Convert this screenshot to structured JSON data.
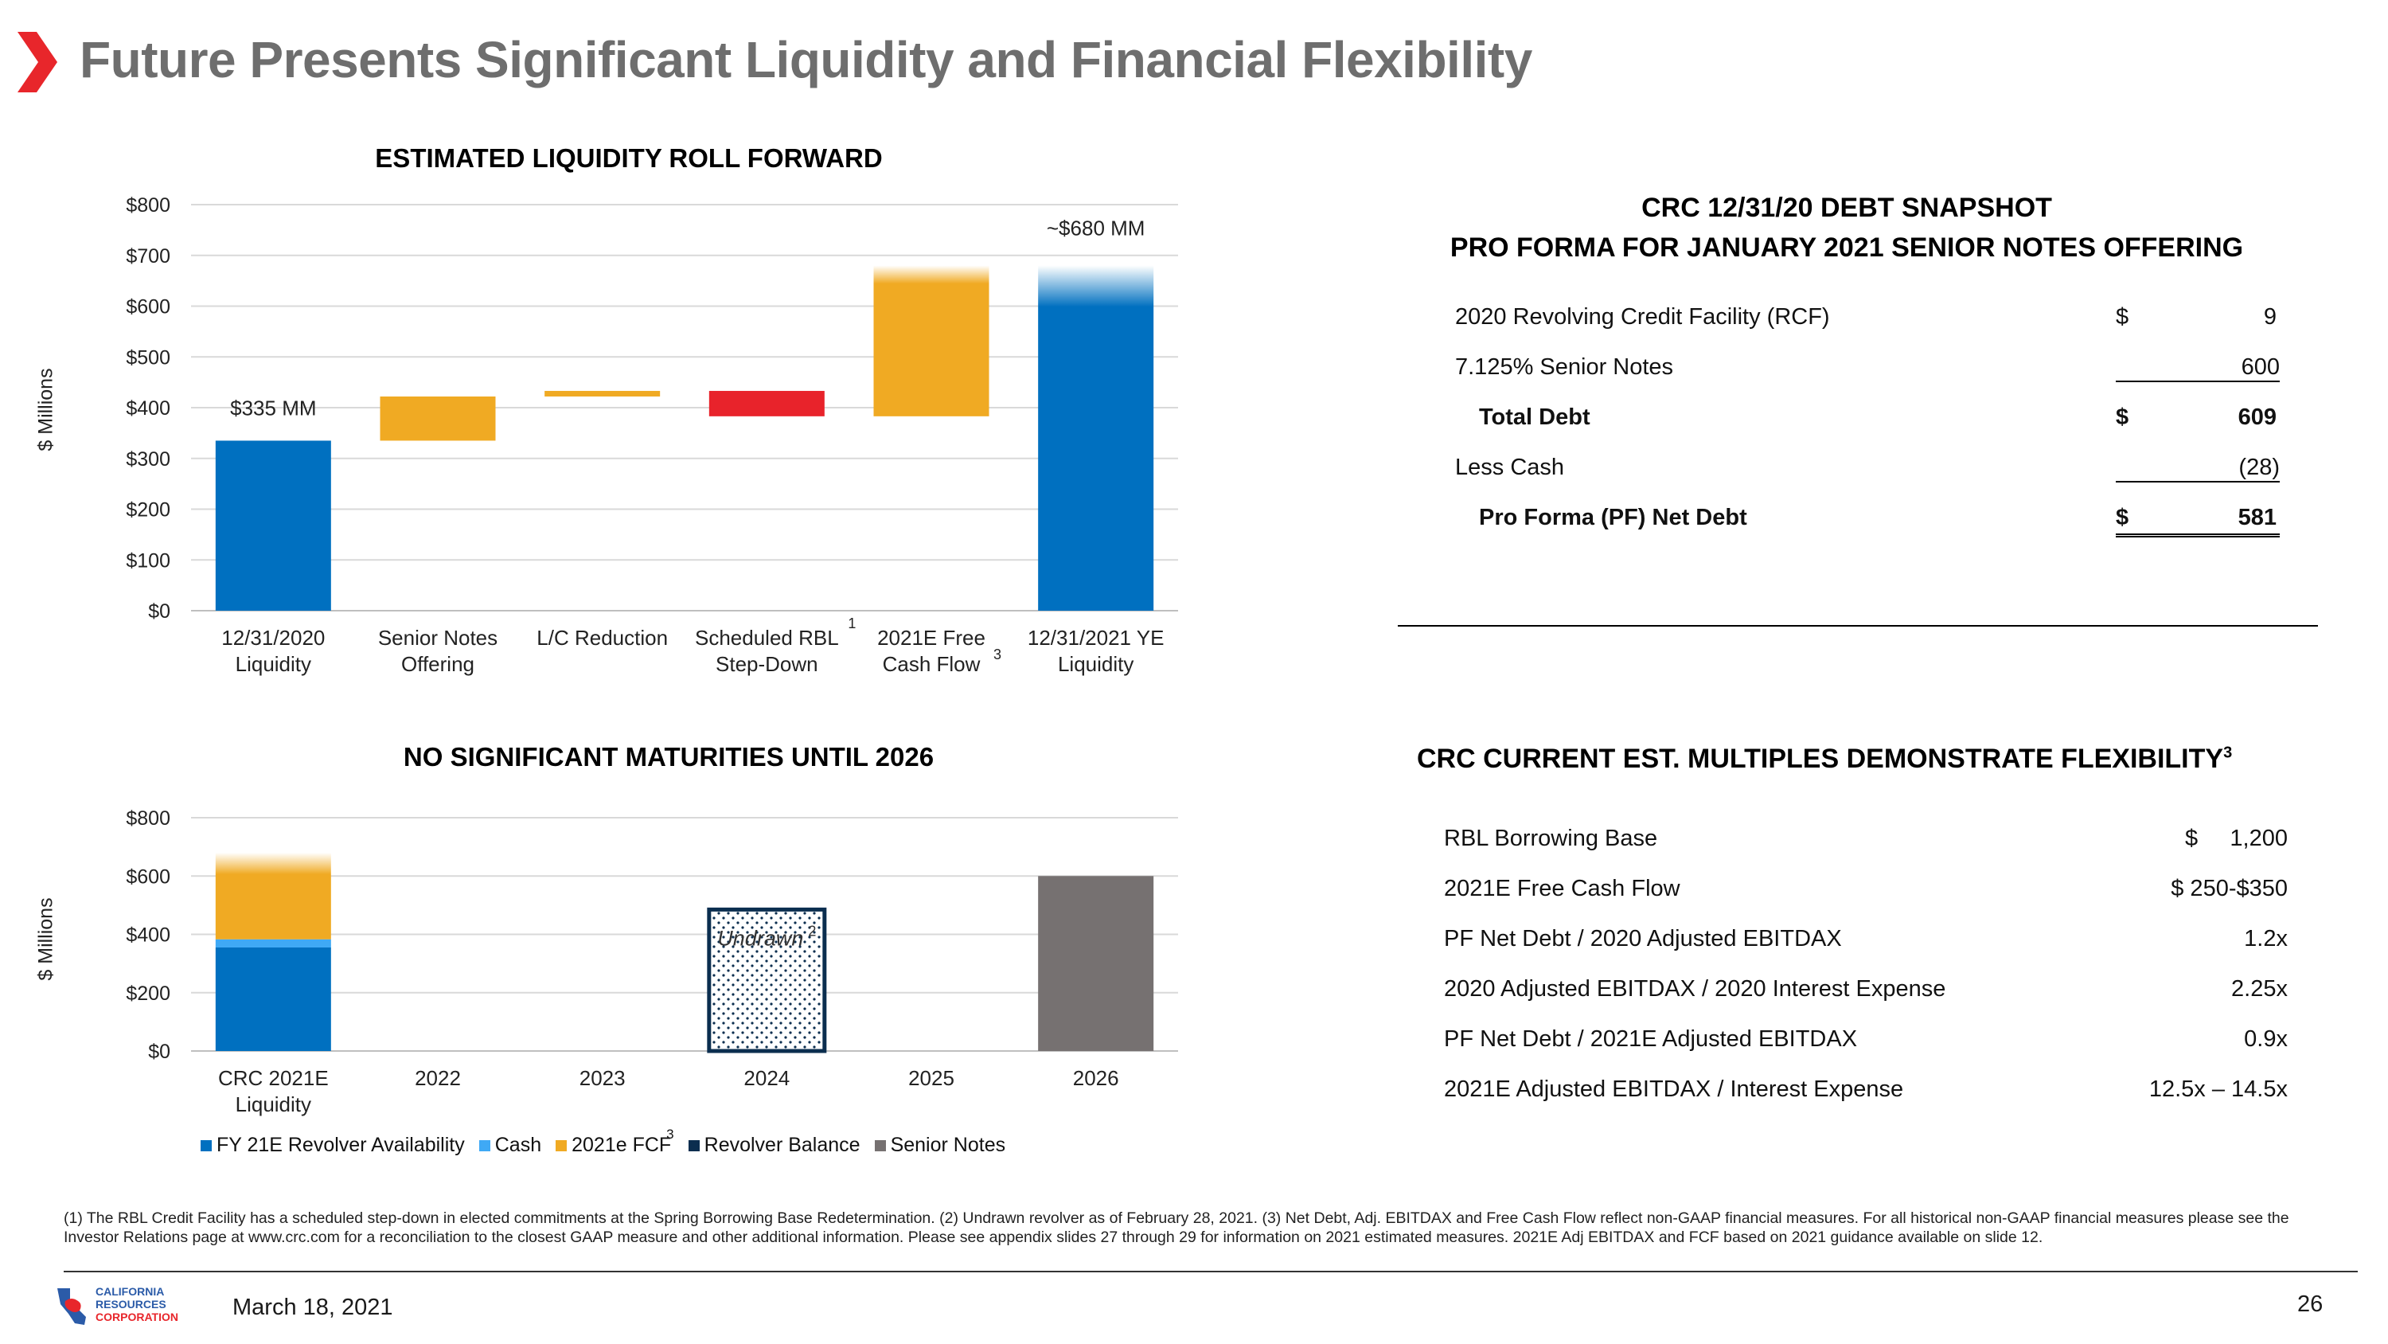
{
  "slide": {
    "title": "Future Presents Significant Liquidity and Financial Flexibility",
    "date": "March 18, 2021",
    "page_number": "26",
    "logo_lines": [
      "CALIFORNIA",
      "RESOURCES",
      "CORPORATION"
    ],
    "footnote": "(1) The RBL Credit Facility has a scheduled step-down in elected commitments at the Spring Borrowing Base Redetermination. (2) Undrawn revolver as of February 28, 2021. (3) Net Debt, Adj. EBITDAX and Free Cash Flow reflect non-GAAP financial measures. For all historical non-GAAP financial measures please see the Investor Relations page at www.crc.com for a reconciliation to the closest GAAP measure and other additional information. Please see appendix slides 27 through 29 for information on 2021 estimated measures. 2021E Adj EBITDAX and FCF based on 2021 guidance available on slide 12.",
    "colors": {
      "accent_red": "#E8262B",
      "title_gray": "#6E6E6E",
      "blue": "#0070C0",
      "gold": "#F0AA23",
      "red": "#E8232B",
      "light_blue": "#3FA9F5",
      "navy": "#0B2E4F",
      "gray": "#767171"
    }
  },
  "chart_data": [
    {
      "type": "bar",
      "subtype": "waterfall",
      "title": "ESTIMATED LIQUIDITY ROLL FORWARD",
      "ylabel": "$ Millions",
      "ylim": [
        0,
        800
      ],
      "yticks": [
        "$0",
        "$100",
        "$200",
        "$300",
        "$400",
        "$500",
        "$600",
        "$700",
        "$800"
      ],
      "categories": [
        {
          "label": [
            "12/31/2020",
            "Liquidity"
          ],
          "sup": ""
        },
        {
          "label": [
            "Senior Notes",
            "Offering"
          ],
          "sup": ""
        },
        {
          "label": [
            "L/C Reduction"
          ],
          "sup": ""
        },
        {
          "label": [
            "Scheduled RBL",
            "Step-Down"
          ],
          "sup": "1"
        },
        {
          "label": [
            "2021E Free",
            "Cash Flow"
          ],
          "sup": "3"
        },
        {
          "label": [
            "12/31/2021 YE",
            "Liquidity"
          ],
          "sup": ""
        }
      ],
      "bars": [
        {
          "low": 0,
          "high": 335,
          "color": "#0070C0",
          "fade": false
        },
        {
          "low": 335,
          "high": 422,
          "color": "#F0AA23",
          "fade": false
        },
        {
          "low": 422,
          "high": 433,
          "color": "#F0AA23",
          "fade": false
        },
        {
          "low": 383,
          "high": 433,
          "color": "#E8232B",
          "fade": false
        },
        {
          "low": 383,
          "high": 680,
          "color": "#F0AA23",
          "fade": true
        },
        {
          "low": 0,
          "high": 680,
          "color": "#0070C0",
          "fade": true
        }
      ],
      "data_labels": [
        {
          "index": 0,
          "value": 335,
          "text": "$335 MM"
        },
        {
          "index": 5,
          "value": 680,
          "text": "~$680 MM"
        }
      ],
      "grid": true
    },
    {
      "type": "bar",
      "subtype": "stacked",
      "title": "NO SIGNIFICANT MATURITIES UNTIL 2026",
      "ylabel": "$ Millions",
      "ylim": [
        0,
        800
      ],
      "yticks": [
        "$0",
        "$200",
        "$400",
        "$600",
        "$800"
      ],
      "categories": [
        {
          "label": [
            "CRC 2021E",
            "Liquidity"
          ]
        },
        {
          "label": [
            "2022"
          ]
        },
        {
          "label": [
            "2023"
          ]
        },
        {
          "label": [
            "2024"
          ]
        },
        {
          "label": [
            "2025"
          ]
        },
        {
          "label": [
            "2026"
          ]
        }
      ],
      "series": [
        {
          "name": "FY 21E Revolver Availability",
          "sup": "",
          "color": "#0070C0",
          "values": [
            355,
            0,
            0,
            0,
            0,
            0
          ]
        },
        {
          "name": "Cash",
          "sup": "",
          "color": "#3FA9F5",
          "values": [
            28,
            0,
            0,
            0,
            0,
            0
          ]
        },
        {
          "name": "2021e FCF",
          "sup": "3",
          "color": "#F0AA23",
          "values": [
            297,
            0,
            0,
            0,
            0,
            0
          ]
        },
        {
          "name": "Revolver Balance",
          "sup": "",
          "color": "#0B2E4F",
          "values": [
            0,
            0,
            0,
            485,
            0,
            0
          ]
        },
        {
          "name": "Senior Notes",
          "sup": "",
          "color": "#767171",
          "values": [
            0,
            0,
            0,
            0,
            0,
            600
          ]
        }
      ],
      "annotations": [
        {
          "category": "2024",
          "text": "Undrawn",
          "sup": "2"
        }
      ],
      "grid": true
    }
  ],
  "debt_snapshot": {
    "title_line1": "CRC 12/31/20 DEBT SNAPSHOT",
    "title_line2": "PRO FORMA FOR JANUARY 2021 SENIOR NOTES OFFERING",
    "rows": [
      {
        "label": "2020 Revolving Credit Facility (RCF)",
        "dollar": "$",
        "value": "9"
      },
      {
        "label": "7.125% Senior Notes",
        "dollar": "",
        "value": "600"
      },
      {
        "label": "Total Debt",
        "dollar": "$",
        "value": "609"
      },
      {
        "label": "Less Cash",
        "dollar": "",
        "value": "(28)"
      },
      {
        "label": "Pro Forma (PF) Net Debt",
        "dollar": "$",
        "value": "581"
      }
    ]
  },
  "multiples": {
    "title": "CRC CURRENT EST. MULTIPLES DEMONSTRATE FLEXIBILITY",
    "title_sup": "3",
    "rows": [
      {
        "label": "RBL Borrowing Base",
        "value": "$     1,200"
      },
      {
        "label": "2021E Free Cash Flow",
        "value": "$ 250-$350"
      },
      {
        "label": "PF Net Debt / 2020 Adjusted EBITDAX",
        "value": "1.2x"
      },
      {
        "label": "2020 Adjusted EBITDAX / 2020 Interest Expense",
        "value": "2.25x"
      },
      {
        "label": "PF Net Debt / 2021E Adjusted EBITDAX",
        "value": "0.9x"
      },
      {
        "label": "2021E Adjusted EBITDAX / Interest Expense",
        "value": "12.5x – 14.5x"
      }
    ]
  }
}
